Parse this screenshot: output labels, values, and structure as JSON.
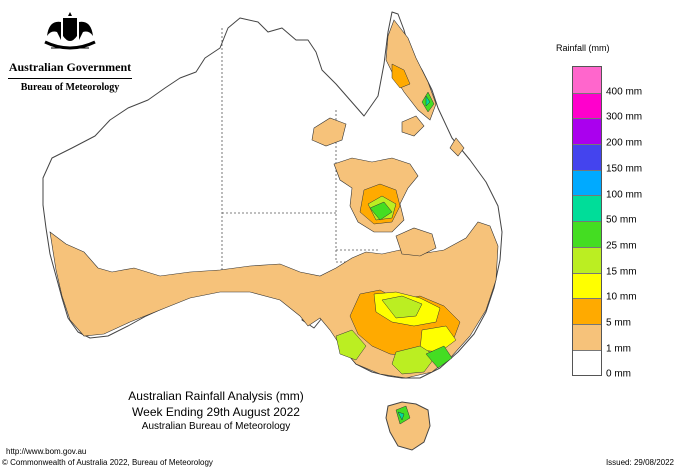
{
  "header": {
    "government": "Australian Government",
    "agency": "Bureau of Meteorology"
  },
  "legend": {
    "title": "Rainfall (mm)",
    "items": [
      {
        "label": "",
        "color": "#ff66cc"
      },
      {
        "label": "400 mm",
        "color": "#ff00cc"
      },
      {
        "label": "300 mm",
        "color": "#aa00ee"
      },
      {
        "label": "200 mm",
        "color": "#4444ee"
      },
      {
        "label": "150 mm",
        "color": "#00aaff"
      },
      {
        "label": "100 mm",
        "color": "#00dd99"
      },
      {
        "label": "50 mm",
        "color": "#44dd22"
      },
      {
        "label": "25 mm",
        "color": "#bbee22"
      },
      {
        "label": "15 mm",
        "color": "#ffff00"
      },
      {
        "label": "10 mm",
        "color": "#ffaa00"
      },
      {
        "label": "5 mm",
        "color": "#f6c27a"
      },
      {
        "label": "1 mm",
        "color": "#ffffff"
      },
      {
        "label": "0 mm",
        "color": ""
      }
    ]
  },
  "caption": {
    "line1": "Australian Rainfall Analysis (mm)",
    "line2": "Week Ending 29th August 2022",
    "line3": "Australian Bureau of Meteorology"
  },
  "footer": {
    "url": "http://www.bom.gov.au",
    "copyright": "© Commonwealth of Australia 2022, Bureau of Meteorology",
    "issued": "Issued: 29/08/2022"
  }
}
